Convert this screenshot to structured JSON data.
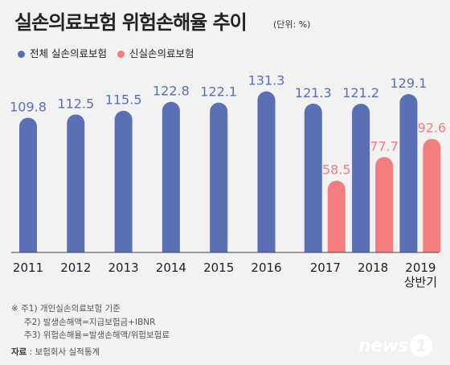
{
  "header": {
    "title": "실손의료보험 위험손해율 추이",
    "unit": "(단위: %)"
  },
  "legend": {
    "total": "전체 실손의료보험",
    "new": "신실손의료보험"
  },
  "colors": {
    "total": "#5b6fb5",
    "new": "#f37d7f",
    "total_label": "#5b6fb5",
    "new_label": "#f37d7f"
  },
  "chart_data": {
    "type": "bar",
    "categories": [
      "2011",
      "2012",
      "2013",
      "2014",
      "2015",
      "2016",
      "2017",
      "2018",
      "2019\n상반기"
    ],
    "series": [
      {
        "name": "전체 실손의료보험",
        "values": [
          109.8,
          112.5,
          115.5,
          122.8,
          122.1,
          131.3,
          121.3,
          121.2,
          129.1
        ]
      },
      {
        "name": "신실손의료보험",
        "values": [
          null,
          null,
          null,
          null,
          null,
          null,
          58.5,
          77.7,
          92.6
        ]
      }
    ],
    "ylim": [
      0,
      140
    ]
  },
  "notes": {
    "note1": "※ 주1) 개인실손의료보험 기준",
    "note2": "주2) 발생손해액=지급보험금+IBNR",
    "note3": "주3) 위험손해율=발생손해액/위험보험료"
  },
  "source": {
    "label": "자료",
    "text": " : 보험회사 실적통계"
  },
  "logo": {
    "text": "news",
    "number": "1"
  }
}
